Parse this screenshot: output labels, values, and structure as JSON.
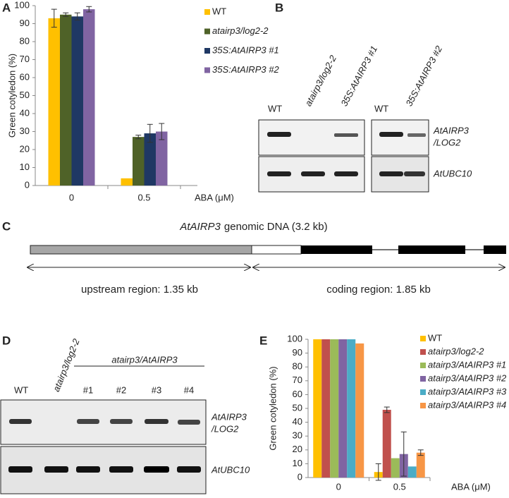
{
  "panel_labels": [
    "A",
    "B",
    "C",
    "D",
    "E"
  ],
  "chart_data": [
    {
      "type": "bar",
      "y_label": "Green cotyledon (%)",
      "x_label": "ABA (μM)",
      "categories": [
        "0",
        "0.5"
      ],
      "ylim": [
        0,
        100
      ],
      "yticks": [
        0,
        10,
        20,
        30,
        40,
        50,
        60,
        70,
        80,
        90,
        100
      ],
      "series": [
        {
          "name": "WT",
          "color": "#FFC000",
          "values": [
            93,
            4
          ],
          "errors": [
            5,
            0
          ]
        },
        {
          "name": "atairp3/log2-2",
          "color": "#4F6228",
          "values": [
            95,
            27
          ],
          "errors": [
            1,
            1
          ]
        },
        {
          "name": "35S:AtAIRP3 #1",
          "color": "#1F3864",
          "values": [
            94,
            29
          ],
          "errors": [
            2,
            5
          ]
        },
        {
          "name": "35S:AtAIRP3 #2",
          "color": "#8064A2",
          "values": [
            98,
            30
          ],
          "errors": [
            1.5,
            4.5
          ]
        }
      ]
    },
    {
      "type": "bar",
      "y_label": "Green cotyledon (%)",
      "x_label": "ABA (μM)",
      "categories": [
        "0",
        "0.5"
      ],
      "ylim": [
        0,
        100
      ],
      "yticks": [
        0,
        10,
        20,
        30,
        40,
        50,
        60,
        70,
        80,
        90,
        100
      ],
      "series": [
        {
          "name": "WT",
          "color": "#FFC000",
          "values": [
            100,
            4
          ],
          "errors": [
            0,
            6
          ]
        },
        {
          "name": "atairp3/log2-2",
          "color": "#C0504D",
          "values": [
            100,
            49
          ],
          "errors": [
            0,
            2
          ]
        },
        {
          "name": "atairp3/AtAIRP3 #1",
          "color": "#9BBB59",
          "values": [
            100,
            14
          ],
          "errors": [
            0,
            0
          ]
        },
        {
          "name": "atairp3/AtAIRP3 #2",
          "color": "#8064A2",
          "values": [
            100,
            17
          ],
          "errors": [
            0,
            16
          ]
        },
        {
          "name": "atairp3/AtAIRP3 #3",
          "color": "#4BACC6",
          "values": [
            100,
            8
          ],
          "errors": [
            0,
            0
          ]
        },
        {
          "name": "atairp3/AtAIRP3 #4",
          "color": "#F79646",
          "values": [
            97,
            18
          ],
          "errors": [
            0,
            2
          ]
        }
      ]
    }
  ],
  "gel_b": {
    "lanes": [
      "WT",
      "atairp3/log2-2",
      "35S:AtAIRP3 #1",
      "WT",
      "35S:AtAIRP3 #2"
    ],
    "genes": [
      "AtAIRP3",
      "/LOG2",
      "AtUBC10"
    ]
  },
  "diagram_c": {
    "title": [
      "AtAIRP3",
      "genomic DNA (3.2 kb)"
    ],
    "upstream": "upstream region: 1.35 kb",
    "coding": "coding region: 1.85 kb"
  },
  "gel_d": {
    "lanes": [
      "WT",
      "atairp3/log2-2"
    ],
    "group": "atairp3/AtAIRP3",
    "lines": [
      "#1",
      "#2",
      "#3",
      "#4"
    ],
    "genes": [
      "AtAIRP3",
      "/LOG2",
      "AtUBC10"
    ]
  }
}
